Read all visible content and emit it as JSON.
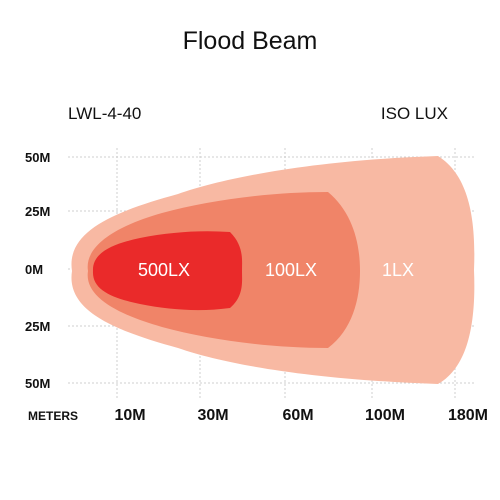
{
  "chart_data": {
    "type": "area",
    "title": "Flood Beam",
    "model": "LWL-4-40",
    "unit_label": "ISO LUX",
    "x_axis_label": "METERS",
    "x_ticks": [
      "10M",
      "30M",
      "60M",
      "100M",
      "180M"
    ],
    "y_ticks": [
      "50M",
      "25M",
      "0M",
      "25M",
      "50M"
    ],
    "grid": "dotted",
    "series": [
      {
        "name": "1LX",
        "color": "#f8b9a3",
        "x": [
          0,
          10,
          30,
          60,
          100,
          180
        ],
        "half_width": [
          15,
          26,
          36,
          40,
          40,
          38
        ]
      },
      {
        "name": "100LX",
        "color": "#f08468",
        "x": [
          0,
          10,
          30,
          60,
          90
        ],
        "half_width": [
          9,
          20,
          27,
          28,
          0
        ]
      },
      {
        "name": "500LX",
        "color": "#ea2a2a",
        "x": [
          0,
          10,
          30,
          40
        ],
        "half_width": [
          5,
          12,
          14,
          0
        ]
      }
    ]
  }
}
